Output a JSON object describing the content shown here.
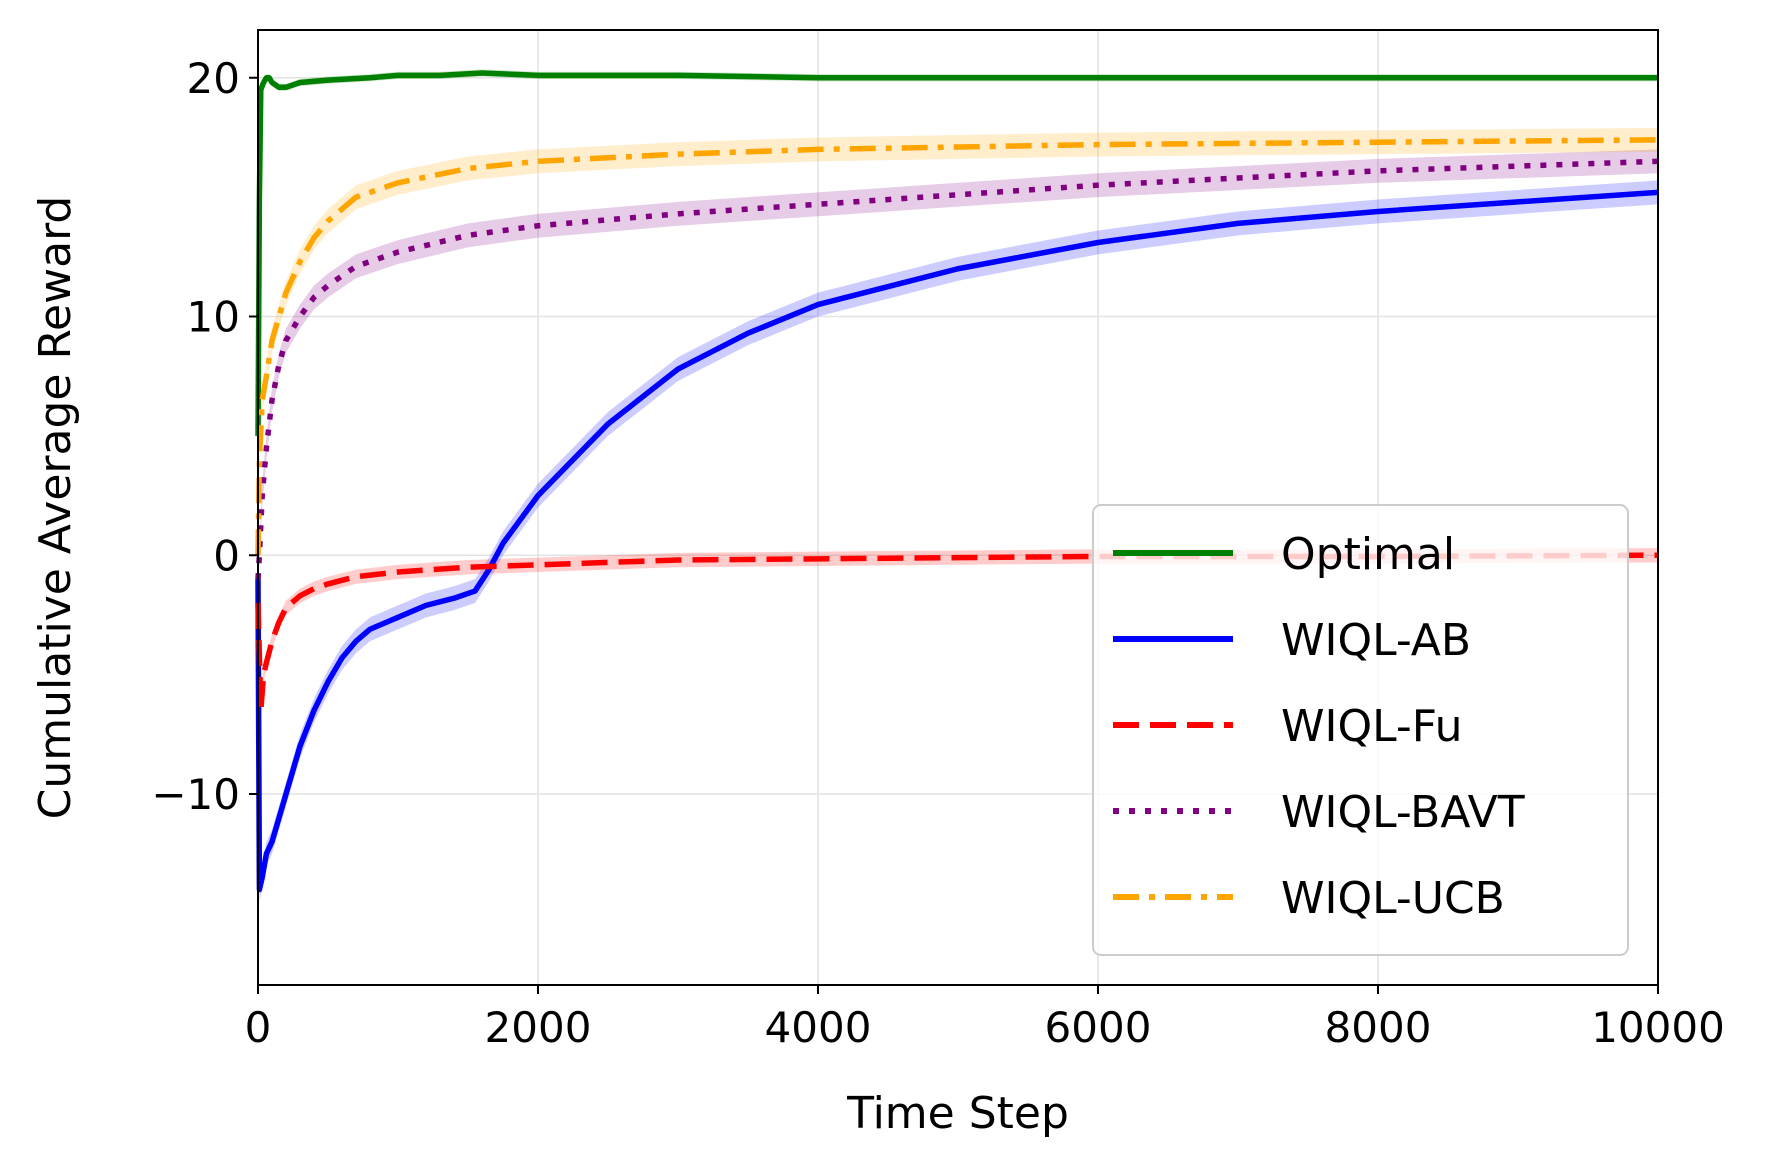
{
  "chart_data": {
    "type": "line",
    "title": "",
    "xlabel": "Time Step",
    "ylabel": "Cumulative Average Reward",
    "xlim": [
      0,
      10000
    ],
    "ylim": [
      -18,
      22
    ],
    "x_ticks": [
      0,
      2000,
      4000,
      6000,
      8000,
      10000
    ],
    "x_tick_labels": [
      "0",
      "2000",
      "4000",
      "6000",
      "8000",
      "10000"
    ],
    "y_ticks": [
      -10,
      0,
      10,
      20
    ],
    "y_tick_labels": [
      "−10",
      "0",
      "10",
      "20"
    ],
    "grid": true,
    "legend_position": "lower-right",
    "series": [
      {
        "name": "Optimal",
        "color": "#008000",
        "style": "solid",
        "band": 0.15,
        "x": [
          0,
          10,
          20,
          40,
          60,
          80,
          100,
          150,
          200,
          300,
          500,
          800,
          1000,
          1300,
          1600,
          2000,
          3000,
          4000,
          6000,
          8000,
          10000
        ],
        "y": [
          5,
          15,
          19.5,
          19.8,
          20.0,
          20.0,
          19.8,
          19.6,
          19.6,
          19.8,
          19.9,
          20.0,
          20.1,
          20.1,
          20.2,
          20.1,
          20.1,
          20.0,
          20.0,
          20.0,
          20.0
        ]
      },
      {
        "name": "WIQL-AB",
        "color": "#0000ff",
        "style": "solid",
        "band": 0.5,
        "x": [
          0,
          10,
          30,
          60,
          100,
          150,
          200,
          300,
          400,
          500,
          600,
          700,
          800,
          1000,
          1200,
          1400,
          1550,
          1650,
          1750,
          2000,
          2500,
          3000,
          3500,
          4000,
          5000,
          6000,
          7000,
          8000,
          9000,
          10000
        ],
        "y": [
          -1,
          -14.0,
          -13.5,
          -12.5,
          -12.0,
          -11.0,
          -10.0,
          -8.0,
          -6.5,
          -5.3,
          -4.3,
          -3.6,
          -3.1,
          -2.6,
          -2.1,
          -1.8,
          -1.5,
          -0.6,
          0.5,
          2.5,
          5.5,
          7.8,
          9.3,
          10.5,
          12.0,
          13.1,
          13.9,
          14.4,
          14.8,
          15.2
        ]
      },
      {
        "name": "WIQL-Fu",
        "color": "#ff0000",
        "style": "dashed",
        "band": 0.3,
        "x": [
          0,
          20,
          40,
          60,
          100,
          150,
          200,
          300,
          400,
          500,
          700,
          1000,
          1500,
          2000,
          3000,
          4000,
          5000,
          6000,
          8000,
          10000
        ],
        "y": [
          -2,
          -6.5,
          -5.0,
          -4.5,
          -3.6,
          -2.8,
          -2.2,
          -1.7,
          -1.4,
          -1.2,
          -0.9,
          -0.7,
          -0.5,
          -0.4,
          -0.2,
          -0.15,
          -0.1,
          -0.05,
          -0.05,
          0.0
        ]
      },
      {
        "name": "WIQL-BAVT",
        "color": "#800080",
        "style": "dotted",
        "band": 0.5,
        "x": [
          0,
          10,
          30,
          60,
          100,
          150,
          200,
          300,
          400,
          500,
          700,
          1000,
          1500,
          2000,
          3000,
          4000,
          5000,
          6000,
          7000,
          8000,
          9000,
          10000
        ],
        "y": [
          -1,
          0,
          2.5,
          4.5,
          6.5,
          8.0,
          9.0,
          10.0,
          10.8,
          11.3,
          12.1,
          12.7,
          13.4,
          13.8,
          14.3,
          14.7,
          15.1,
          15.5,
          15.8,
          16.1,
          16.3,
          16.5
        ]
      },
      {
        "name": "WIQL-UCB",
        "color": "#ffa500",
        "style": "dashdot",
        "band": 0.5,
        "x": [
          0,
          10,
          30,
          60,
          100,
          150,
          200,
          300,
          400,
          500,
          700,
          1000,
          1500,
          2000,
          3000,
          4000,
          5000,
          6000,
          8000,
          10000
        ],
        "y": [
          0,
          4,
          6.5,
          7.5,
          9.0,
          10.0,
          11.0,
          12.3,
          13.3,
          14.0,
          15.0,
          15.6,
          16.2,
          16.5,
          16.8,
          17.0,
          17.1,
          17.2,
          17.3,
          17.4
        ]
      }
    ]
  }
}
